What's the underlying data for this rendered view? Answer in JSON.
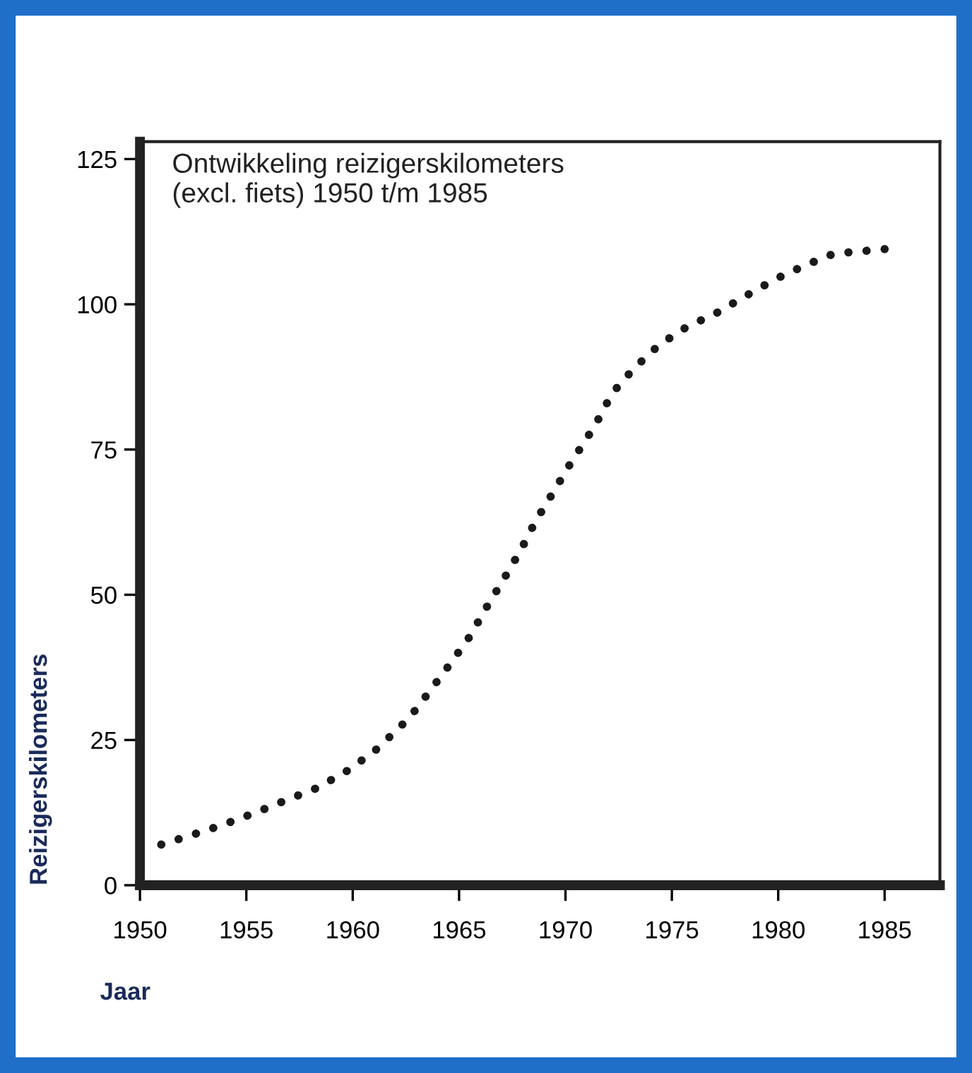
{
  "chart_data": {
    "type": "line",
    "title": "Ontwikkeling reizigerskilometers\n(excl. fiets) 1950 t/m 1985",
    "xlabel": "Jaar",
    "ylabel": "Reizigerskilometers",
    "x": [
      1951.0,
      1952.4,
      1953.9,
      1955.5,
      1956.9,
      1958.3,
      1959.7,
      1961.0,
      1962.1,
      1962.7,
      1963.6,
      1964.6,
      1965.5,
      1966.3,
      1967.1,
      1967.9,
      1968.6,
      1969.4,
      1970.2,
      1971.1,
      1971.5,
      1972.2,
      1973.2,
      1974.4,
      1975.7,
      1977.1,
      1978.5,
      1979.9,
      1981.2,
      1982.6,
      1984.1,
      1985.0
    ],
    "series": [
      {
        "color": "#1a1a1a",
        "values": [
          7.0,
          8.6,
          10.4,
          12.6,
          14.7,
          16.7,
          19.6,
          23.0,
          26.8,
          29.0,
          33.3,
          38.2,
          42.8,
          47.9,
          52.7,
          57.7,
          62.7,
          67.5,
          72.4,
          77.5,
          79.9,
          84.7,
          88.9,
          93.0,
          96.1,
          98.5,
          101.5,
          104.4,
          106.6,
          108.7,
          109.2,
          109.5
        ]
      }
    ],
    "xlim": [
      1950,
      1987.6
    ],
    "ylim": [
      0,
      128
    ],
    "xticks": [
      1950,
      1955,
      1960,
      1965,
      1970,
      1975,
      1980,
      1985
    ],
    "yticks": [
      0,
      25,
      50,
      75,
      100,
      125
    ],
    "grid": false,
    "legend": false,
    "marker": "none",
    "line_style": "dotted"
  }
}
